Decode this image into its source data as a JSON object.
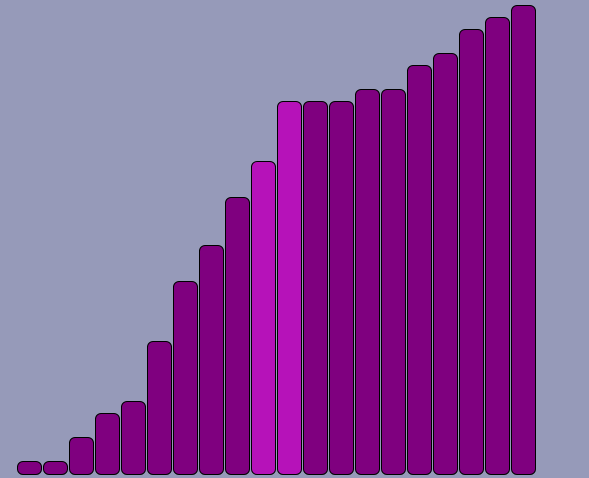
{
  "game": {
    "heights": [
      1,
      1,
      3,
      5,
      6,
      11,
      16,
      19,
      23,
      26,
      31,
      31,
      31,
      32,
      32,
      34,
      35,
      37,
      38,
      39
    ],
    "highlighted": [
      9,
      10
    ],
    "colors": {
      "background": "#969ab9",
      "bar": "#7f007f",
      "bar_highlight": "#b612b9",
      "outline": "#000000"
    }
  }
}
